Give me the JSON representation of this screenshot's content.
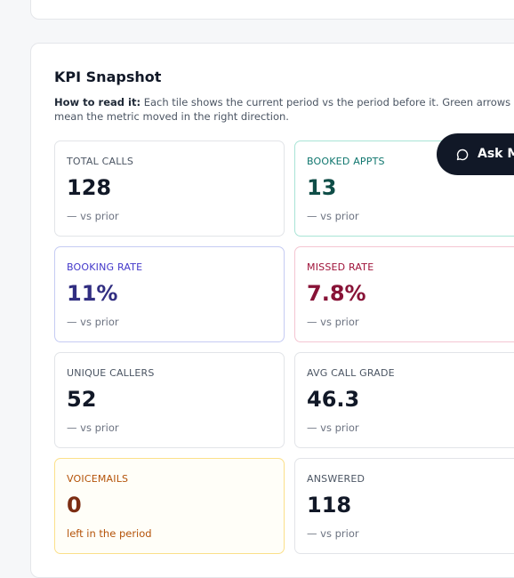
{
  "kpi_snapshot": {
    "title": "KPI Snapshot",
    "description": {
      "lead": "How to read it:",
      "text": "Each tile shows the current period vs the period before it. Green arrows mean the metric moved in the right direction."
    },
    "tiles": [
      {
        "label": "TOTAL CALLS",
        "value": "128",
        "note": "— vs prior"
      },
      {
        "label": "BOOKED APPTS",
        "value": "13",
        "note": "— vs prior"
      },
      {
        "label": "BOOKING RATE",
        "value": "11%",
        "note": "— vs prior"
      },
      {
        "label": "MISSED RATE",
        "value": "7.8%",
        "note": "— vs prior"
      },
      {
        "label": "UNIQUE CALLERS",
        "value": "52",
        "note": "— vs prior"
      },
      {
        "label": "AVG CALL GRADE",
        "value": "46.3",
        "note": "— vs prior"
      },
      {
        "label": "VOICEMAILS",
        "value": "0",
        "note": "left in the period"
      },
      {
        "label": "ANSWERED",
        "value": "118",
        "note": "— vs prior"
      }
    ]
  },
  "ask_button": {
    "label": "Ask M"
  }
}
